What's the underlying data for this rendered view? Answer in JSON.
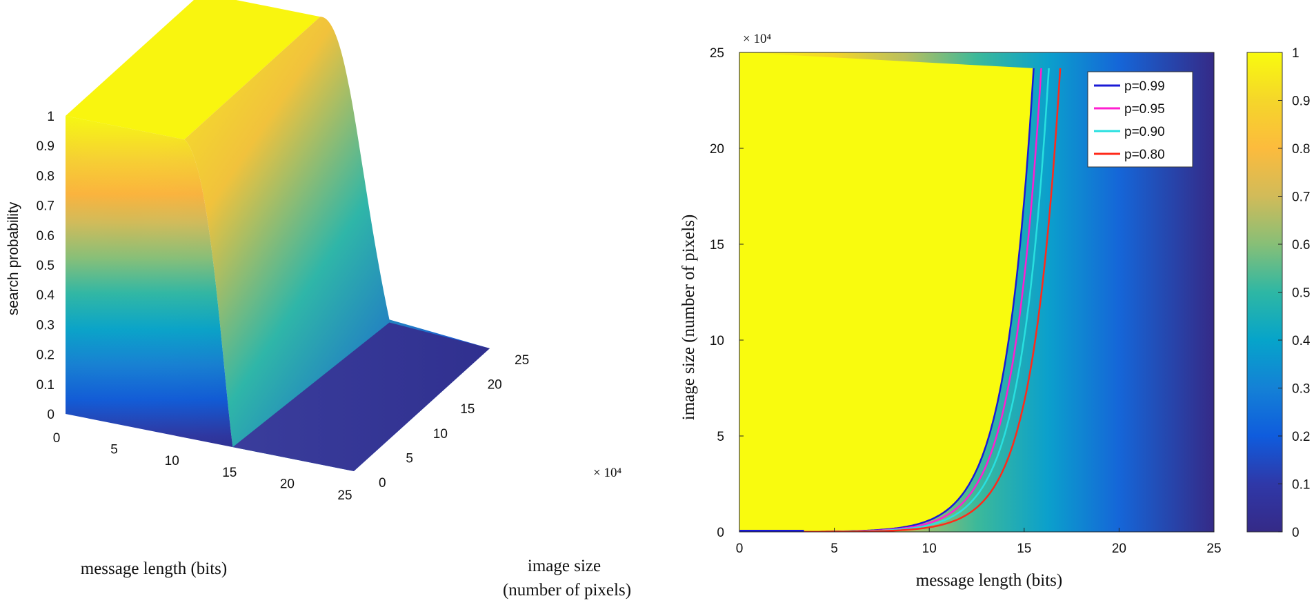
{
  "chart_data": [
    {
      "type": "surface",
      "zlabel": "search probability",
      "xlabel": "message length (bits)",
      "ylabel_line1": "image  size",
      "ylabel_line2": "(number of pixels)",
      "x_ticks": [
        "0",
        "5",
        "10",
        "15",
        "20",
        "25"
      ],
      "y_ticks": [
        "0",
        "5",
        "10",
        "15",
        "20",
        "25"
      ],
      "y_exponent": "× 10⁴",
      "z_ticks": [
        "0",
        "0.1",
        "0.2",
        "0.3",
        "0.4",
        "0.5",
        "0.6",
        "0.7",
        "0.8",
        "0.9",
        "1"
      ],
      "xlim": [
        0,
        25
      ],
      "ylim": [
        0,
        25
      ],
      "zlim": [
        0,
        1
      ]
    },
    {
      "type": "heatmap",
      "xlabel": "message length (bits)",
      "ylabel": "image  size (number of pixels)",
      "y_exponent": "× 10⁴",
      "x_ticks": [
        "0",
        "5",
        "10",
        "15",
        "20",
        "25"
      ],
      "y_ticks": [
        "0",
        "5",
        "10",
        "15",
        "20",
        "25"
      ],
      "xlim": [
        0,
        25
      ],
      "ylim": [
        0,
        25
      ],
      "colorbar_ticks": [
        "0",
        "0.1",
        "0.2",
        "0.3",
        "0.4",
        "0.5",
        "0.6",
        "0.7",
        "0.8",
        "0.9",
        "1"
      ],
      "colormap": "parula",
      "legend_position": "top-right",
      "contours": [
        {
          "label": "p=0.99",
          "color": "#1a1ad6",
          "p": 0.99
        },
        {
          "label": "p=0.95",
          "color": "#ff1fd0",
          "p": 0.95
        },
        {
          "label": "p=0.90",
          "color": "#28e0e0",
          "p": 0.9
        },
        {
          "label": "p=0.80",
          "color": "#ff2a1a",
          "p": 0.8
        }
      ]
    }
  ]
}
